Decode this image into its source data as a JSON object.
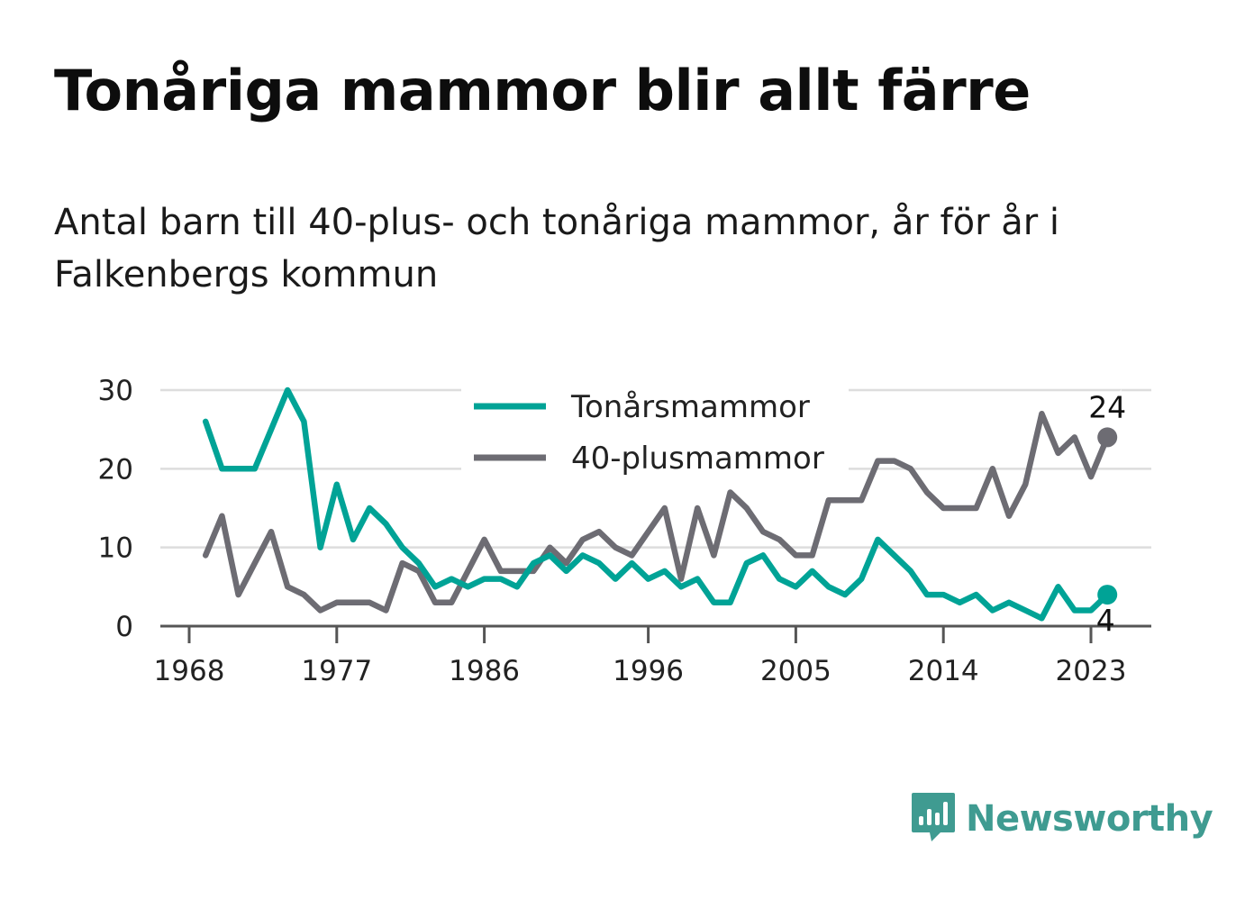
{
  "title": "Tonåriga mammor blir allt färre",
  "subtitle": "Antal barn till 40-plus- och tonåriga mammor, år för år i Falkenbergs kommun",
  "brand": {
    "name": "Newsworthy",
    "icon": "newsworthy-logo-icon"
  },
  "colors": {
    "teen": "#00a396",
    "plus40": "#6d6c73",
    "grid": "#dddddd",
    "axis": "#555555",
    "text": "#222222"
  },
  "chart_data": {
    "type": "line",
    "x": [
      1969,
      1970,
      1971,
      1972,
      1973,
      1974,
      1975,
      1976,
      1977,
      1978,
      1979,
      1980,
      1981,
      1982,
      1983,
      1984,
      1985,
      1986,
      1987,
      1988,
      1989,
      1990,
      1991,
      1992,
      1993,
      1994,
      1995,
      1996,
      1997,
      1998,
      1999,
      2000,
      2001,
      2002,
      2003,
      2004,
      2005,
      2006,
      2007,
      2008,
      2009,
      2010,
      2011,
      2012,
      2013,
      2014,
      2015,
      2016,
      2017,
      2018,
      2019,
      2020,
      2021,
      2022,
      2023,
      2024
    ],
    "series": [
      {
        "name": "Tonårsmammor",
        "color": "#00a396",
        "end_label": "4",
        "values": [
          26,
          20,
          20,
          20,
          25,
          30,
          26,
          10,
          18,
          11,
          15,
          13,
          10,
          8,
          5,
          6,
          5,
          6,
          6,
          5,
          8,
          9,
          7,
          9,
          8,
          6,
          8,
          6,
          7,
          5,
          6,
          3,
          3,
          8,
          9,
          6,
          5,
          7,
          5,
          4,
          6,
          11,
          9,
          7,
          4,
          4,
          3,
          4,
          2,
          3,
          2,
          1,
          5,
          2,
          2,
          4
        ]
      },
      {
        "name": "40-plusmammor",
        "color": "#6d6c73",
        "end_label": "24",
        "values": [
          9,
          14,
          4,
          8,
          12,
          5,
          4,
          2,
          3,
          3,
          3,
          2,
          8,
          7,
          3,
          3,
          7,
          11,
          7,
          7,
          7,
          10,
          8,
          11,
          12,
          10,
          9,
          12,
          15,
          6,
          15,
          9,
          17,
          15,
          12,
          11,
          9,
          9,
          16,
          16,
          16,
          21,
          21,
          20,
          17,
          15,
          15,
          15,
          20,
          14,
          18,
          27,
          22,
          24,
          19,
          24
        ]
      }
    ],
    "xticks": [
      1968,
      1977,
      1986,
      1996,
      2005,
      2014,
      2023
    ],
    "yticks": [
      0,
      10,
      20,
      30
    ],
    "xlim": [
      1968,
      2024
    ],
    "ylim": [
      0,
      30
    ],
    "grid": true,
    "legend_position": "top-center"
  }
}
